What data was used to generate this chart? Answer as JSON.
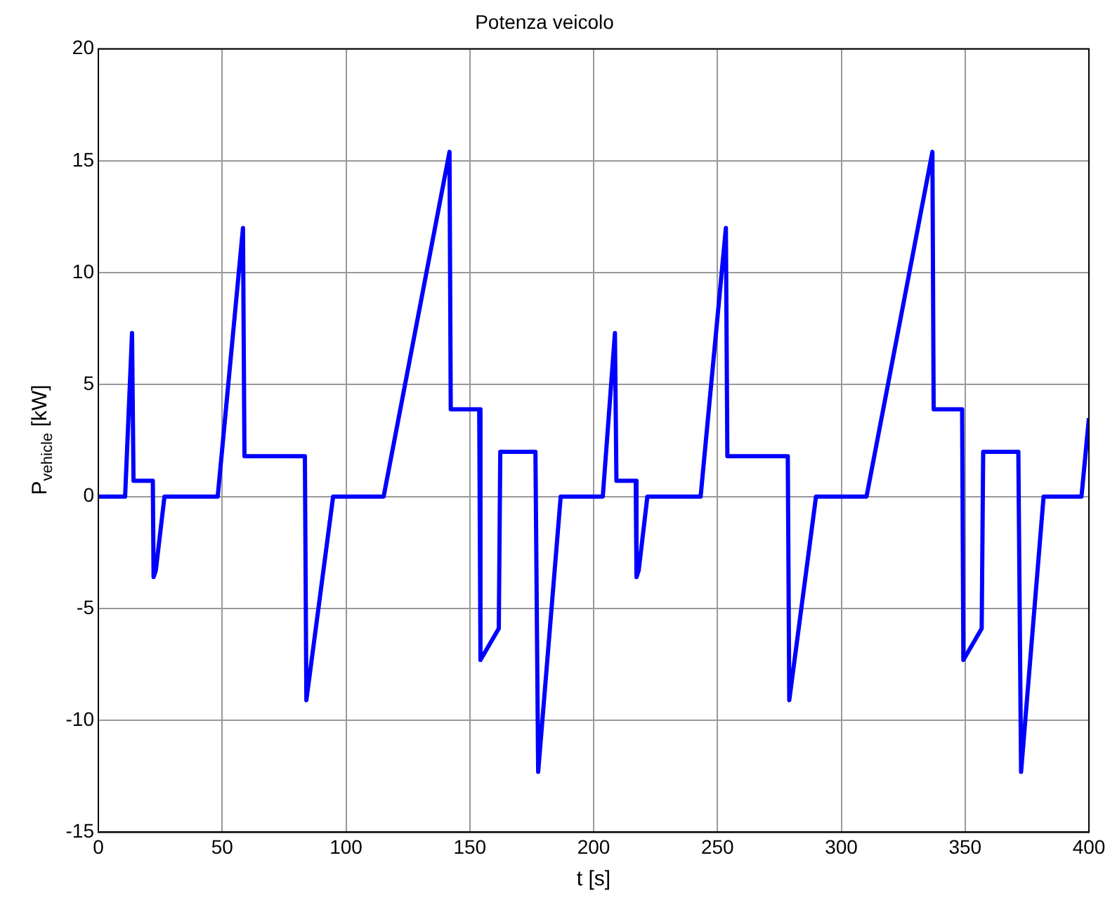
{
  "chart_data": {
    "type": "line",
    "title": "Potenza veicolo",
    "xlabel": "t [s]",
    "ylabel": "P$_{vehicle}$ [kW]",
    "xlim": [
      0,
      400
    ],
    "xticks": [
      0,
      50,
      100,
      150,
      200,
      250,
      300,
      350,
      400
    ],
    "ylim": [
      -15,
      20
    ],
    "yticks": [
      -15,
      -10,
      -5,
      0,
      5,
      10,
      15,
      20
    ],
    "grid": true,
    "legend": false,
    "marker": "none",
    "line_style": "solid",
    "series": [
      {
        "color": "#0000ff",
        "x": [
          0,
          10.8,
          13.6,
          14.2,
          22,
          22.3,
          23.2,
          26.7,
          48.2,
          58.4,
          59,
          83.4,
          84,
          94.8,
          115.2,
          141.8,
          142.3,
          153.8,
          154.3,
          161.7,
          162.3,
          176.5,
          177.6,
          186.7,
          203.7,
          208.6,
          209.2,
          217,
          217.3,
          218.2,
          221.7,
          243.2,
          253.4,
          254,
          278.4,
          279,
          289.8,
          310.2,
          336.8,
          337.3,
          348.8,
          349.3,
          356.7,
          357.3,
          371.5,
          372.6,
          381.7,
          397,
          400
        ],
        "values": [
          0,
          0,
          7.3,
          0.7,
          0.7,
          -3.6,
          -3.3,
          0,
          0,
          12,
          1.8,
          1.8,
          -9.1,
          0,
          0,
          15.4,
          3.9,
          3.9,
          -7.3,
          -5.9,
          2,
          2,
          -12.3,
          0,
          0,
          7.3,
          0.7,
          0.7,
          -3.6,
          -3.3,
          0,
          0,
          12,
          1.8,
          1.8,
          -9.1,
          0,
          0,
          15.4,
          3.9,
          3.9,
          -7.3,
          -5.9,
          2,
          2,
          -12.3,
          0,
          0,
          3.5
        ]
      }
    ]
  }
}
